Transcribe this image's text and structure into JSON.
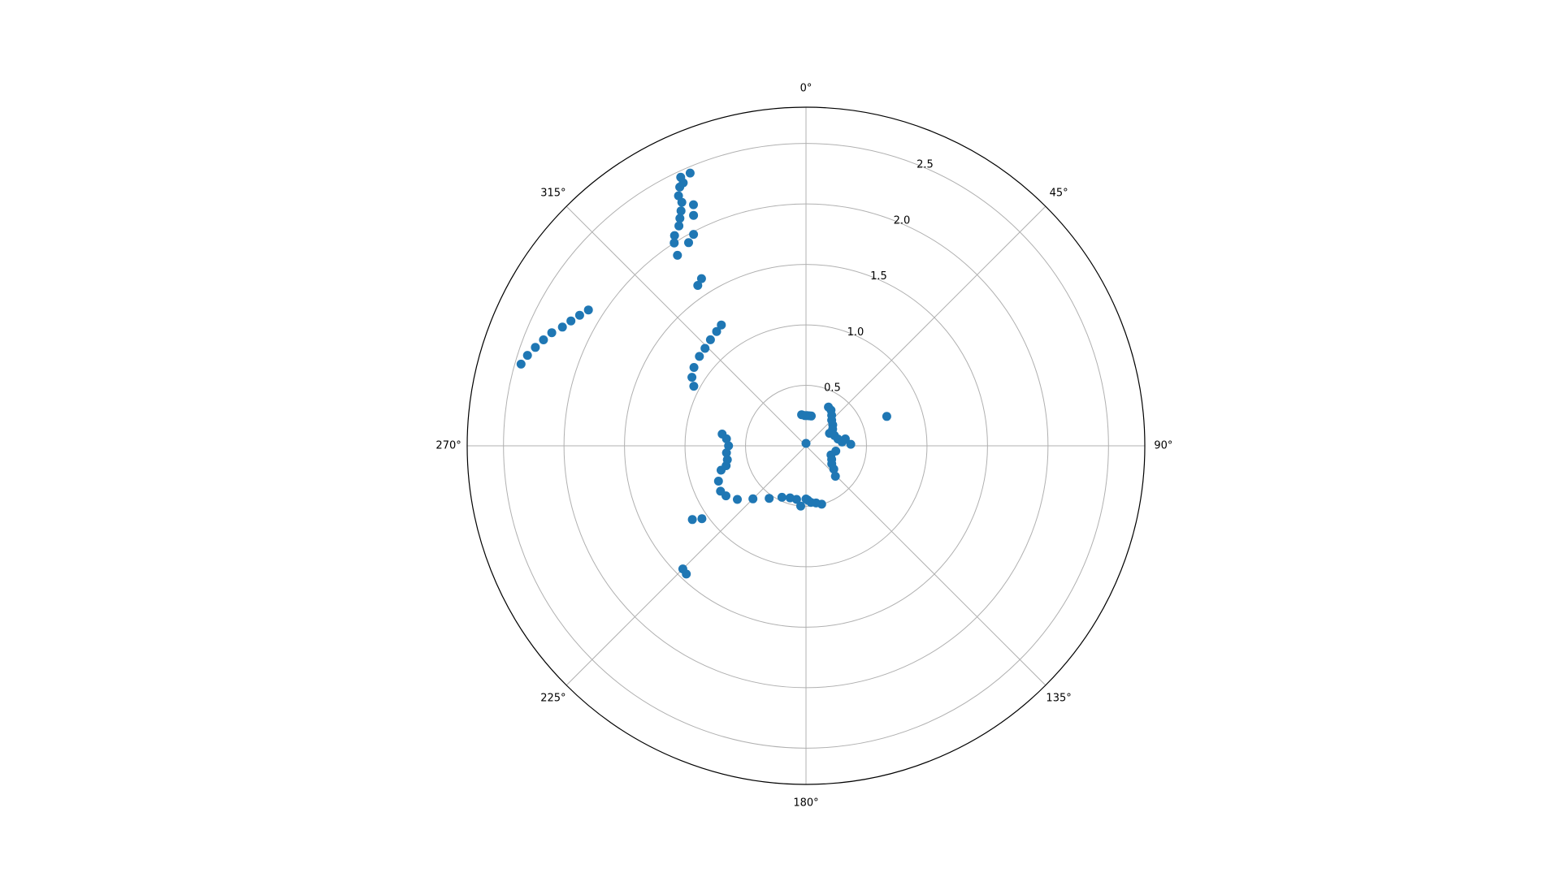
{
  "chart_data": {
    "type": "scatter",
    "projection": "polar",
    "theta_zero_location": "N",
    "theta_direction": "clockwise",
    "rlim": [
      0,
      2.8
    ],
    "r_ticks": [
      0.5,
      1.0,
      1.5,
      2.0,
      2.5
    ],
    "r_tick_labels": [
      "0.5",
      "1.0",
      "1.5",
      "2.0",
      "2.5"
    ],
    "theta_ticks": [
      0,
      45,
      90,
      135,
      180,
      225,
      270,
      315
    ],
    "theta_tick_labels": [
      "0°",
      "45°",
      "90°",
      "135°",
      "180°",
      "225°",
      "270°",
      "315°"
    ],
    "grid": true,
    "marker_color": "#1f77b4",
    "series": [
      {
        "values": [
          [
            0,
            0.02
          ],
          [
            10,
            0.25
          ],
          [
            6,
            0.25
          ],
          [
            2,
            0.25
          ],
          [
            358,
            0.25
          ],
          [
            352,
            0.26
          ],
          [
            30,
            0.37
          ],
          [
            35,
            0.36
          ],
          [
            40,
            0.33
          ],
          [
            45,
            0.3
          ],
          [
            52,
            0.28
          ],
          [
            58,
            0.26
          ],
          [
            62,
            0.22
          ],
          [
            70,
            0.25
          ],
          [
            78,
            0.27
          ],
          [
            84,
            0.3
          ],
          [
            88,
            0.37
          ],
          [
            80,
            0.33
          ],
          [
            70,
            0.71
          ],
          [
            100,
            0.25
          ],
          [
            110,
            0.22
          ],
          [
            118,
            0.24
          ],
          [
            125,
            0.26
          ],
          [
            130,
            0.3
          ],
          [
            136,
            0.35
          ],
          [
            165,
            0.5
          ],
          [
            170,
            0.48
          ],
          [
            175,
            0.47
          ],
          [
            178,
            0.45
          ],
          [
            180,
            0.44
          ],
          [
            185,
            0.5
          ],
          [
            190,
            0.45
          ],
          [
            197,
            0.45
          ],
          [
            205,
            0.47
          ],
          [
            215,
            0.53
          ],
          [
            225,
            0.62
          ],
          [
            232,
            0.72
          ],
          [
            238,
            0.78
          ],
          [
            242,
            0.8
          ],
          [
            248,
            0.78
          ],
          [
            254,
            0.73
          ],
          [
            256,
            0.68
          ],
          [
            260,
            0.66
          ],
          [
            265,
            0.66
          ],
          [
            270,
            0.64
          ],
          [
            275,
            0.66
          ],
          [
            278,
            0.7
          ],
          [
            237,
            1.12
          ],
          [
            235,
            1.05
          ],
          [
            223,
            1.45
          ],
          [
            225,
            1.44
          ],
          [
            298,
            1.05
          ],
          [
            301,
            1.1
          ],
          [
            305,
            1.13
          ],
          [
            310,
            1.15
          ],
          [
            314,
            1.16
          ],
          [
            318,
            1.18
          ],
          [
            322,
            1.2
          ],
          [
            325,
            1.22
          ],
          [
            286,
            2.45
          ],
          [
            288,
            2.42
          ],
          [
            290,
            2.38
          ],
          [
            292,
            2.34
          ],
          [
            294,
            2.3
          ],
          [
            296,
            2.24
          ],
          [
            298,
            2.2
          ],
          [
            300,
            2.16
          ],
          [
            302,
            2.12
          ],
          [
            326,
            1.6
          ],
          [
            328,
            1.63
          ],
          [
            326,
            1.9
          ],
          [
            327,
            2.0
          ],
          [
            328,
            2.05
          ],
          [
            330,
            2.1
          ],
          [
            331,
            2.15
          ],
          [
            332,
            2.2
          ],
          [
            333,
            2.26
          ],
          [
            333,
            2.32
          ],
          [
            334,
            2.38
          ],
          [
            335,
            2.45
          ],
          [
            337,
            2.45
          ],
          [
            335,
            2.2
          ],
          [
            334,
            2.12
          ],
          [
            332,
            1.98
          ],
          [
            330,
            1.94
          ],
          [
            335,
            2.4
          ]
        ]
      }
    ]
  }
}
